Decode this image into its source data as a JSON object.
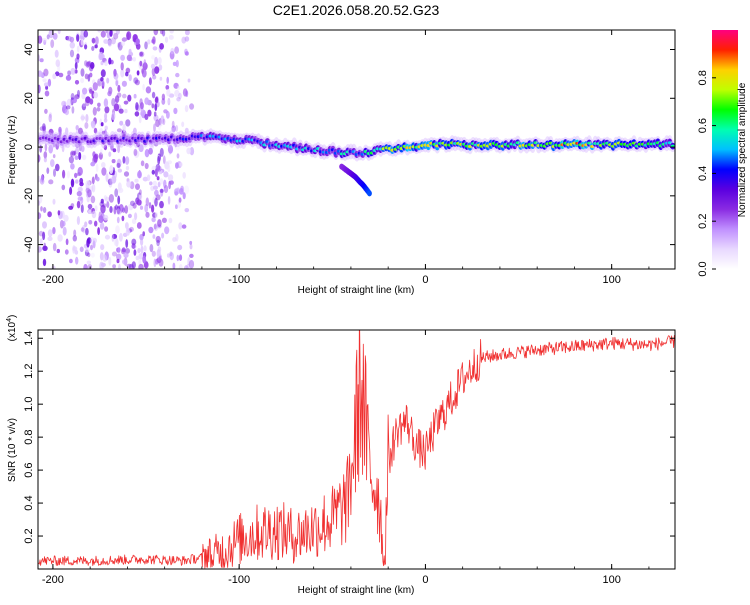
{
  "title": "C2E1.2026.058.20.52.G23",
  "chart_data": [
    {
      "type": "heatmap",
      "title": "C2E1.2026.058.20.52.G23",
      "xlabel": "Height of straight line (km)",
      "ylabel": "Frequency (Hz)",
      "xlim": [
        -208,
        134
      ],
      "ylim": [
        -50,
        48
      ],
      "xticks": [
        -200,
        -100,
        0,
        100
      ],
      "yticks": [
        -40,
        -20,
        0,
        20,
        40
      ],
      "colorbar": {
        "label": "Normalized spectral amplitude",
        "range": [
          0,
          1
        ],
        "ticks": [
          "0.0",
          "0.2",
          "0.4",
          "0.6",
          "0.8"
        ],
        "colors": [
          "#ffffff",
          "#e8d8ff",
          "#c090ff",
          "#8a2be2",
          "#5a00e0",
          "#0000ff",
          "#00c0ff",
          "#00ffb0",
          "#00ff00",
          "#c0ff00",
          "#ffd000",
          "#ff2000",
          "#ff0080"
        ]
      },
      "series": [
        {
          "name": "main ridge frequency (Hz)",
          "x": [
            -208,
            -180,
            -150,
            -120,
            -100,
            -80,
            -60,
            -45,
            -35,
            -25,
            -10,
            0,
            40,
            80,
            100,
            134
          ],
          "y": [
            3,
            3,
            3,
            4,
            3,
            1,
            -1,
            -2,
            -3,
            -1,
            0,
            1,
            1,
            1,
            1,
            1
          ]
        },
        {
          "name": "normalized amplitude",
          "x": [
            -208,
            -180,
            -150,
            -120,
            -100,
            -80,
            -60,
            -45,
            -35,
            -25,
            -10,
            0,
            40,
            80,
            100,
            134
          ],
          "y": [
            0.3,
            0.35,
            0.35,
            0.45,
            0.5,
            0.5,
            0.5,
            0.55,
            0.5,
            0.7,
            0.8,
            0.75,
            0.7,
            0.85,
            0.7,
            0.6
          ]
        },
        {
          "name": "side branch frequency (Hz)",
          "x": [
            -45,
            -38,
            -33,
            -30
          ],
          "y": [
            -8,
            -12,
            -16,
            -19
          ]
        }
      ]
    },
    {
      "type": "line",
      "title": "",
      "xlabel": "Height of straight line (km)",
      "ylabel": "SNR (10 * v/v)",
      "ylabel_multiplier": "(x10",
      "ylabel_exponent": "4",
      "ylabel_close": ")",
      "xlim": [
        -208,
        134
      ],
      "ylim": [
        0,
        1.45
      ],
      "xticks": [
        -200,
        -100,
        0,
        100
      ],
      "yticks": [
        0.2,
        0.4,
        0.6,
        0.8,
        1.0,
        1.2,
        1.4
      ],
      "ytick_labels": [
        "0.2",
        "0.4",
        "0.6",
        "0.8",
        "1.0",
        "1.2",
        "1.4"
      ],
      "color": "#f03030",
      "series": [
        {
          "name": "SNR",
          "x": [
            -208,
            -180,
            -150,
            -130,
            -120,
            -110,
            -100,
            -90,
            -80,
            -70,
            -60,
            -50,
            -42,
            -38,
            -35,
            -33,
            -30,
            -25,
            -22,
            -20,
            -15,
            -10,
            -5,
            0,
            5,
            10,
            15,
            20,
            25,
            30,
            40,
            60,
            80,
            100,
            120,
            134
          ],
          "y": [
            0.05,
            0.05,
            0.06,
            0.05,
            0.07,
            0.1,
            0.18,
            0.22,
            0.24,
            0.2,
            0.25,
            0.3,
            0.4,
            0.75,
            1.15,
            0.95,
            0.6,
            0.45,
            0.02,
            0.65,
            0.85,
            0.9,
            0.75,
            0.7,
            0.85,
            0.95,
            1.05,
            1.15,
            1.22,
            1.28,
            1.3,
            1.33,
            1.35,
            1.37,
            1.36,
            1.38
          ]
        }
      ]
    }
  ]
}
